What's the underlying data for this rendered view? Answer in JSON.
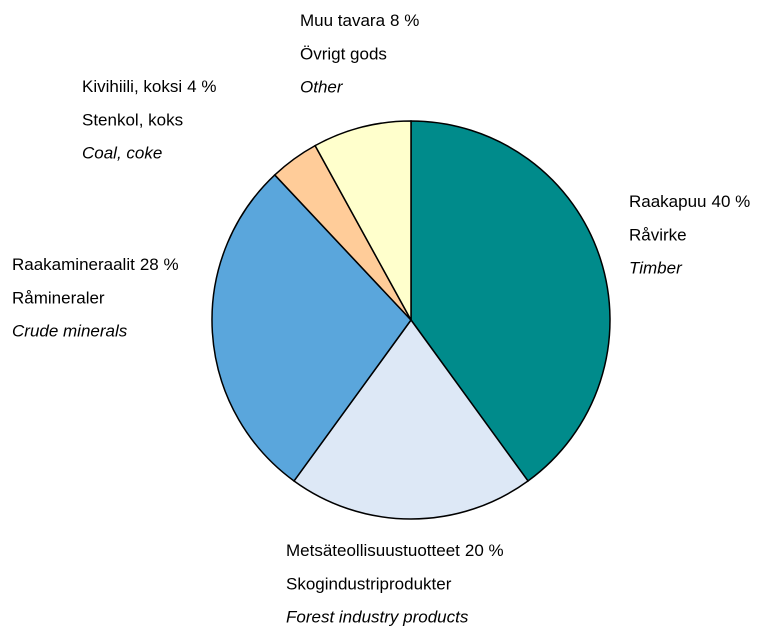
{
  "chart_data": {
    "type": "pie",
    "categories": [
      "Raakapuu",
      "Metsäteollisuustuotteet",
      "Raakamineraalit",
      "Kivihiili, koksi",
      "Muu tavara"
    ],
    "values": [
      40,
      20,
      28,
      4,
      8
    ],
    "value_labels": [
      "40  %",
      "20 %",
      "28 %",
      "4 %",
      "8 %"
    ],
    "swedish": [
      "Råvirke",
      "Skogindustriprodukter",
      "Råmineraler",
      "Stenkol, koks",
      "Övrigt gods"
    ],
    "english": [
      "Timber",
      "Forest industry products",
      "Crude minerals",
      "Coal, coke",
      "Other"
    ],
    "colors": [
      "#008b8b",
      "#dde8f6",
      "#5aa6dc",
      "#ffcc99",
      "#ffffcc"
    ]
  }
}
